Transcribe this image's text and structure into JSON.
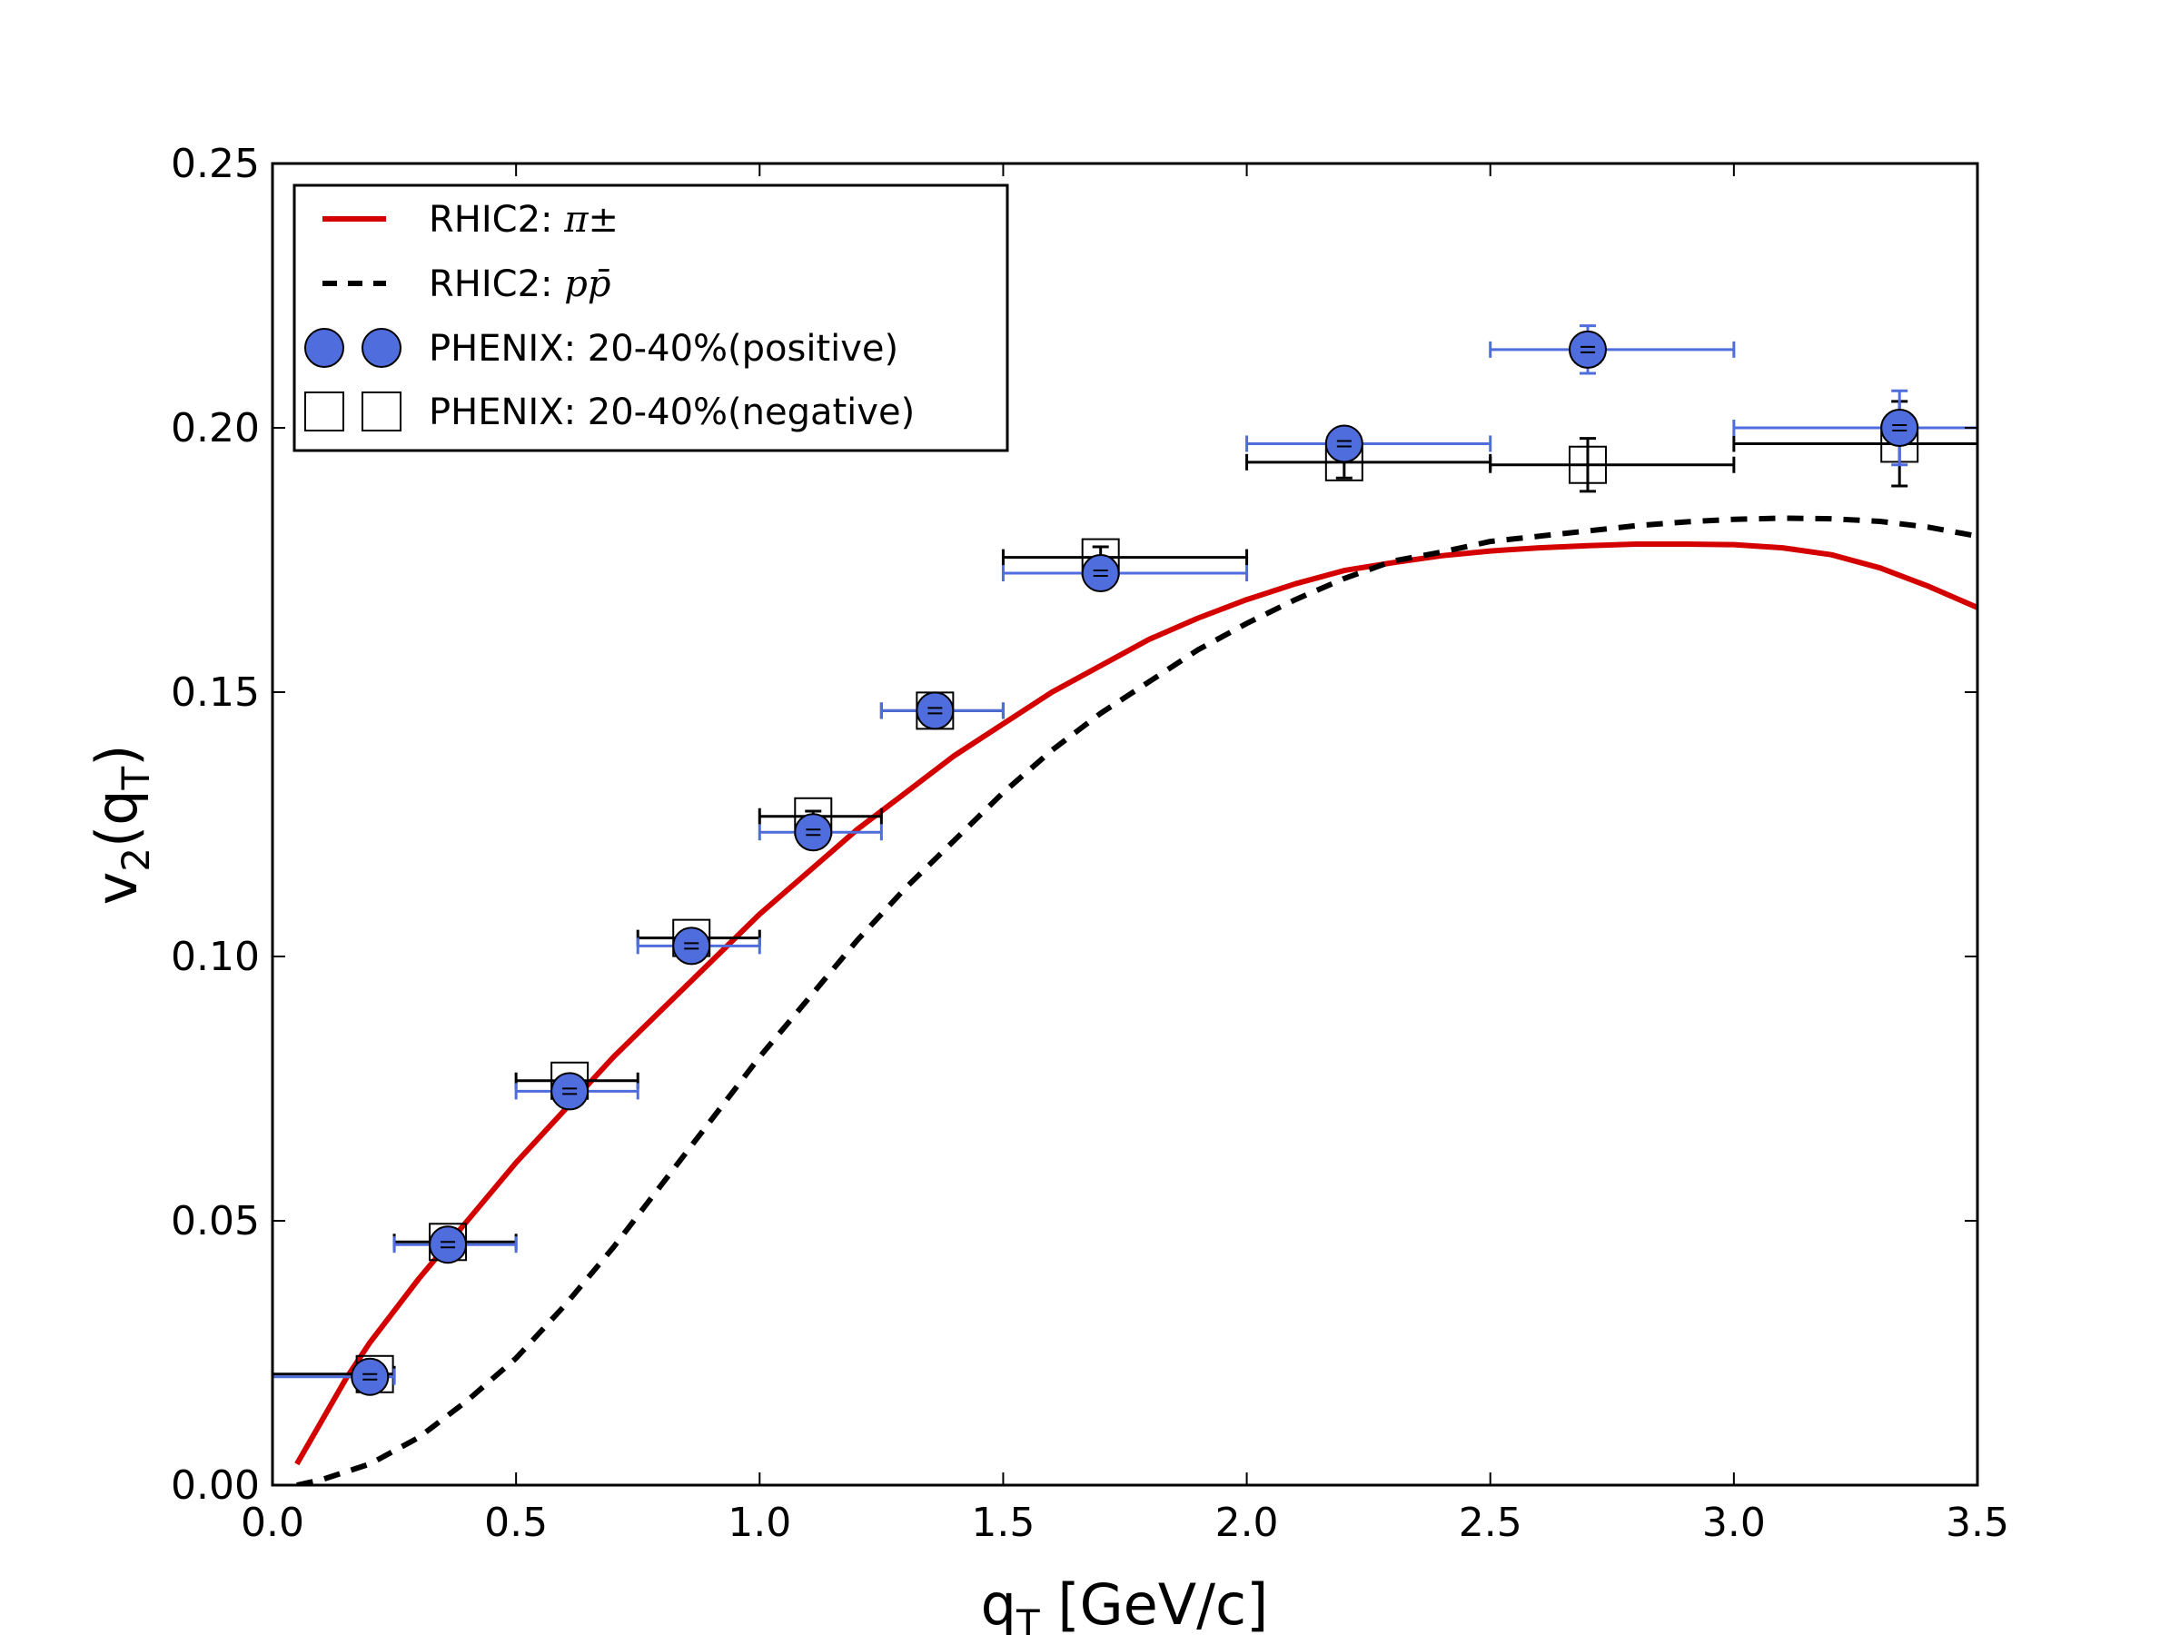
{
  "chart_data": {
    "type": "scatter",
    "xlabel": "q_T [GeV/c]",
    "ylabel": "v_2(q_T)",
    "xlim": [
      0.0,
      3.5
    ],
    "ylim": [
      0.0,
      0.25
    ],
    "x_ticks": [
      "0.0",
      "0.5",
      "1.0",
      "1.5",
      "2.0",
      "2.5",
      "3.0",
      "3.5"
    ],
    "y_ticks": [
      "0.00",
      "0.05",
      "0.10",
      "0.15",
      "0.20",
      "0.25"
    ],
    "grid": false,
    "legend_position": "top-left",
    "series": [
      {
        "name": "RHIC2: π±",
        "legend_label": "RHIC2: ",
        "legend_math": "π±",
        "kind": "line",
        "style": "solid",
        "color": "#d40000",
        "x": [
          0.05,
          0.1,
          0.15,
          0.2,
          0.3,
          0.4,
          0.5,
          0.6,
          0.7,
          0.8,
          0.9,
          1.0,
          1.1,
          1.2,
          1.3,
          1.4,
          1.5,
          1.6,
          1.7,
          1.8,
          1.9,
          2.0,
          2.1,
          2.2,
          2.3,
          2.4,
          2.5,
          2.6,
          2.7,
          2.8,
          2.9,
          3.0,
          3.1,
          3.2,
          3.3,
          3.4,
          3.5
        ],
        "y": [
          0.004,
          0.012,
          0.02,
          0.027,
          0.039,
          0.05,
          0.061,
          0.071,
          0.081,
          0.09,
          0.099,
          0.108,
          0.116,
          0.124,
          0.131,
          0.138,
          0.144,
          0.15,
          0.155,
          0.16,
          0.164,
          0.1675,
          0.1705,
          0.173,
          0.1745,
          0.1758,
          0.1767,
          0.1773,
          0.1777,
          0.178,
          0.178,
          0.1779,
          0.1773,
          0.176,
          0.1735,
          0.17,
          0.166
        ]
      },
      {
        "name": "RHIC2: pp̄",
        "legend_label": "RHIC2: ",
        "legend_math": "pp̄",
        "kind": "line",
        "style": "dashed",
        "color": "#000000",
        "x": [
          0.05,
          0.1,
          0.2,
          0.3,
          0.4,
          0.5,
          0.6,
          0.7,
          0.8,
          0.9,
          1.0,
          1.1,
          1.2,
          1.3,
          1.4,
          1.5,
          1.6,
          1.7,
          1.8,
          1.9,
          2.0,
          2.1,
          2.2,
          2.3,
          2.4,
          2.5,
          2.6,
          2.7,
          2.8,
          2.9,
          3.0,
          3.1,
          3.2,
          3.3,
          3.4,
          3.5
        ],
        "y": [
          0.0,
          0.001,
          0.004,
          0.009,
          0.016,
          0.024,
          0.034,
          0.045,
          0.057,
          0.069,
          0.081,
          0.092,
          0.103,
          0.113,
          0.122,
          0.131,
          0.139,
          0.146,
          0.152,
          0.158,
          0.163,
          0.1675,
          0.1715,
          0.1748,
          0.1765,
          0.1785,
          0.1795,
          0.1805,
          0.1815,
          0.1822,
          0.1827,
          0.1829,
          0.1828,
          0.1823,
          0.1812,
          0.1795
        ]
      },
      {
        "name": "PHENIX: 20-40%(positive)",
        "kind": "points",
        "marker": "circle",
        "color": "#4f6ddc",
        "x": [
          0.2,
          0.36,
          0.61,
          0.86,
          1.11,
          1.36,
          1.7,
          2.2,
          2.7,
          3.34
        ],
        "y": [
          0.0205,
          0.0455,
          0.0745,
          0.102,
          0.1235,
          0.1465,
          0.1725,
          0.197,
          0.2148,
          0.2
        ],
        "x_low": [
          0.0,
          0.25,
          0.5,
          0.75,
          1.0,
          1.25,
          1.5,
          2.0,
          2.5,
          3.0
        ],
        "x_high": [
          0.25,
          0.5,
          0.75,
          1.0,
          1.25,
          1.5,
          2.0,
          2.5,
          3.0,
          3.5
        ],
        "y_err": [
          0.001,
          0.001,
          0.001,
          0.001,
          0.001,
          0.001,
          0.001,
          0.002,
          0.0045,
          0.007
        ]
      },
      {
        "name": "PHENIX: 20-40%(negative)",
        "kind": "points",
        "marker": "square",
        "color": "#000000",
        "x": [
          0.21,
          0.36,
          0.61,
          0.86,
          1.11,
          1.36,
          1.7,
          2.2,
          2.7,
          3.34
        ],
        "y": [
          0.021,
          0.046,
          0.0765,
          0.1035,
          0.1265,
          0.1465,
          0.1755,
          0.1935,
          0.193,
          0.197
        ],
        "x_low": [
          0.0,
          0.25,
          0.5,
          0.75,
          1.0,
          1.25,
          1.5,
          2.0,
          2.5,
          3.0
        ],
        "x_high": [
          0.25,
          0.5,
          0.75,
          1.0,
          1.25,
          1.5,
          2.0,
          2.5,
          3.0,
          3.5
        ],
        "y_err": [
          0.001,
          0.001,
          0.001,
          0.001,
          0.001,
          0.001,
          0.002,
          0.003,
          0.005,
          0.008
        ]
      }
    ]
  }
}
